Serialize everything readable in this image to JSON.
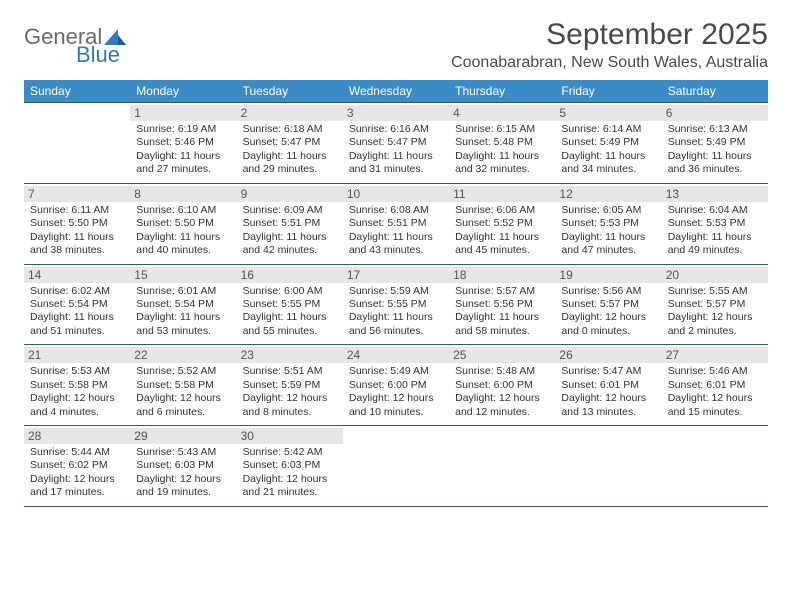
{
  "brand": {
    "word1": "General",
    "word2": "Blue"
  },
  "title": "September 2025",
  "location": "Coonabarabran, New South Wales, Australia",
  "colors": {
    "header_bg": "#3b8bc8",
    "header_text": "#ffffff",
    "row_border": "#2f5a78",
    "daynum_bg": "#e6e6e6",
    "brand_gray": "#6b6b6b",
    "brand_blue": "#2f7bbf"
  },
  "layout": {
    "columns": 7,
    "rows": 5,
    "first_weekday_index": 1,
    "days_in_month": 30
  },
  "weekdays": [
    "Sunday",
    "Monday",
    "Tuesday",
    "Wednesday",
    "Thursday",
    "Friday",
    "Saturday"
  ],
  "days": [
    {
      "n": 1,
      "sr": "6:19 AM",
      "ss": "5:46 PM",
      "dl": "11 hours and 27 minutes."
    },
    {
      "n": 2,
      "sr": "6:18 AM",
      "ss": "5:47 PM",
      "dl": "11 hours and 29 minutes."
    },
    {
      "n": 3,
      "sr": "6:16 AM",
      "ss": "5:47 PM",
      "dl": "11 hours and 31 minutes."
    },
    {
      "n": 4,
      "sr": "6:15 AM",
      "ss": "5:48 PM",
      "dl": "11 hours and 32 minutes."
    },
    {
      "n": 5,
      "sr": "6:14 AM",
      "ss": "5:49 PM",
      "dl": "11 hours and 34 minutes."
    },
    {
      "n": 6,
      "sr": "6:13 AM",
      "ss": "5:49 PM",
      "dl": "11 hours and 36 minutes."
    },
    {
      "n": 7,
      "sr": "6:11 AM",
      "ss": "5:50 PM",
      "dl": "11 hours and 38 minutes."
    },
    {
      "n": 8,
      "sr": "6:10 AM",
      "ss": "5:50 PM",
      "dl": "11 hours and 40 minutes."
    },
    {
      "n": 9,
      "sr": "6:09 AM",
      "ss": "5:51 PM",
      "dl": "11 hours and 42 minutes."
    },
    {
      "n": 10,
      "sr": "6:08 AM",
      "ss": "5:51 PM",
      "dl": "11 hours and 43 minutes."
    },
    {
      "n": 11,
      "sr": "6:06 AM",
      "ss": "5:52 PM",
      "dl": "11 hours and 45 minutes."
    },
    {
      "n": 12,
      "sr": "6:05 AM",
      "ss": "5:53 PM",
      "dl": "11 hours and 47 minutes."
    },
    {
      "n": 13,
      "sr": "6:04 AM",
      "ss": "5:53 PM",
      "dl": "11 hours and 49 minutes."
    },
    {
      "n": 14,
      "sr": "6:02 AM",
      "ss": "5:54 PM",
      "dl": "11 hours and 51 minutes."
    },
    {
      "n": 15,
      "sr": "6:01 AM",
      "ss": "5:54 PM",
      "dl": "11 hours and 53 minutes."
    },
    {
      "n": 16,
      "sr": "6:00 AM",
      "ss": "5:55 PM",
      "dl": "11 hours and 55 minutes."
    },
    {
      "n": 17,
      "sr": "5:59 AM",
      "ss": "5:55 PM",
      "dl": "11 hours and 56 minutes."
    },
    {
      "n": 18,
      "sr": "5:57 AM",
      "ss": "5:56 PM",
      "dl": "11 hours and 58 minutes."
    },
    {
      "n": 19,
      "sr": "5:56 AM",
      "ss": "5:57 PM",
      "dl": "12 hours and 0 minutes."
    },
    {
      "n": 20,
      "sr": "5:55 AM",
      "ss": "5:57 PM",
      "dl": "12 hours and 2 minutes."
    },
    {
      "n": 21,
      "sr": "5:53 AM",
      "ss": "5:58 PM",
      "dl": "12 hours and 4 minutes."
    },
    {
      "n": 22,
      "sr": "5:52 AM",
      "ss": "5:58 PM",
      "dl": "12 hours and 6 minutes."
    },
    {
      "n": 23,
      "sr": "5:51 AM",
      "ss": "5:59 PM",
      "dl": "12 hours and 8 minutes."
    },
    {
      "n": 24,
      "sr": "5:49 AM",
      "ss": "6:00 PM",
      "dl": "12 hours and 10 minutes."
    },
    {
      "n": 25,
      "sr": "5:48 AM",
      "ss": "6:00 PM",
      "dl": "12 hours and 12 minutes."
    },
    {
      "n": 26,
      "sr": "5:47 AM",
      "ss": "6:01 PM",
      "dl": "12 hours and 13 minutes."
    },
    {
      "n": 27,
      "sr": "5:46 AM",
      "ss": "6:01 PM",
      "dl": "12 hours and 15 minutes."
    },
    {
      "n": 28,
      "sr": "5:44 AM",
      "ss": "6:02 PM",
      "dl": "12 hours and 17 minutes."
    },
    {
      "n": 29,
      "sr": "5:43 AM",
      "ss": "6:03 PM",
      "dl": "12 hours and 19 minutes."
    },
    {
      "n": 30,
      "sr": "5:42 AM",
      "ss": "6:03 PM",
      "dl": "12 hours and 21 minutes."
    }
  ],
  "labels": {
    "sunrise": "Sunrise:",
    "sunset": "Sunset:",
    "daylight": "Daylight:"
  }
}
